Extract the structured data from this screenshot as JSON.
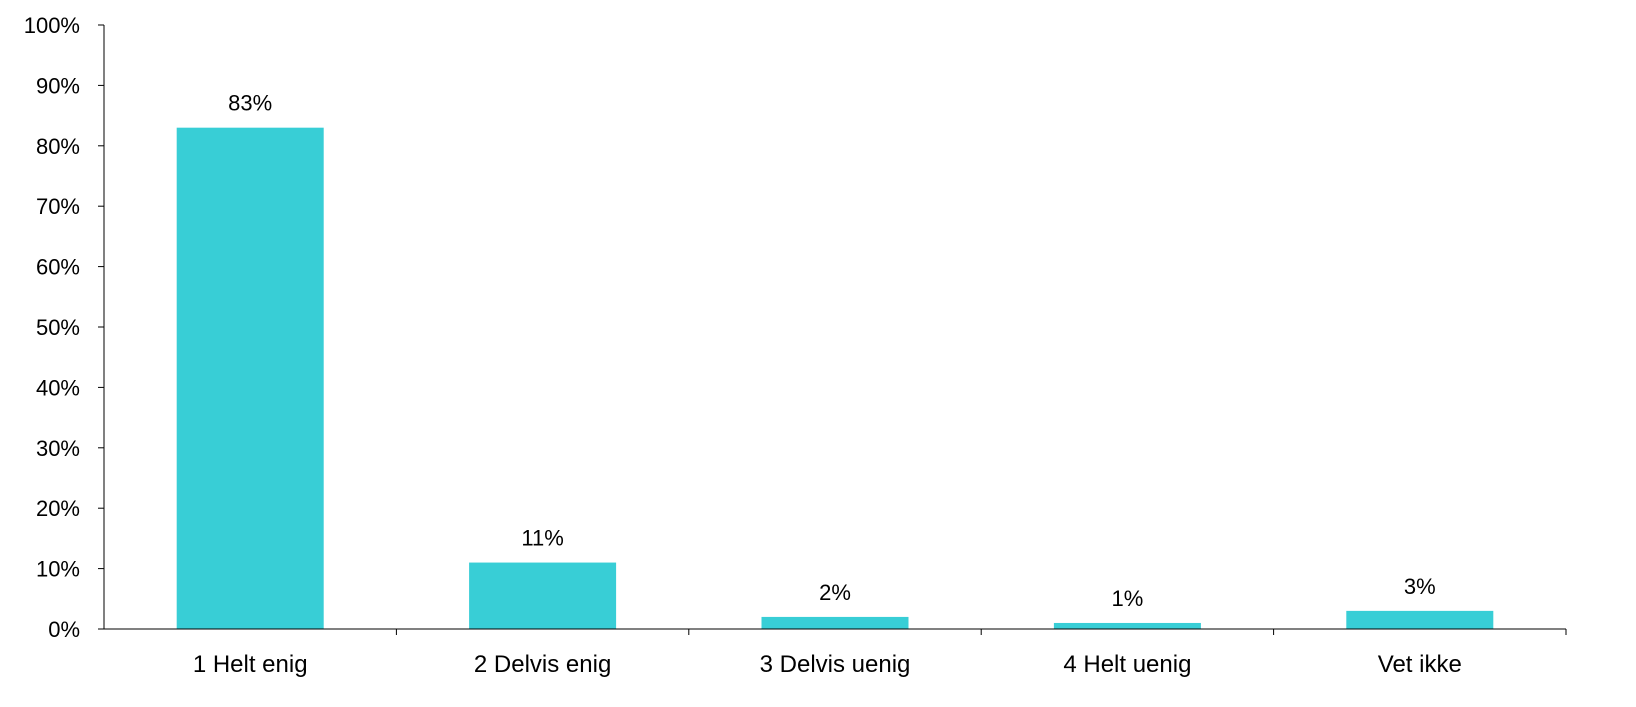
{
  "chart_data": {
    "type": "bar",
    "categories": [
      "1 Helt enig",
      "2 Delvis enig",
      "3 Delvis uenig",
      "4 Helt uenig",
      "Vet ikke"
    ],
    "values": [
      83,
      11,
      2,
      1,
      3
    ],
    "value_labels": [
      "83%",
      "11%",
      "2%",
      "1%",
      "3%"
    ],
    "y_ticks": [
      "0%",
      "10%",
      "20%",
      "30%",
      "40%",
      "50%",
      "60%",
      "70%",
      "80%",
      "90%",
      "100%"
    ],
    "ylim": [
      0,
      100
    ],
    "grid": false,
    "legend": "none",
    "bar_color": "#38CED6",
    "title": "",
    "xlabel": "",
    "ylabel": ""
  }
}
